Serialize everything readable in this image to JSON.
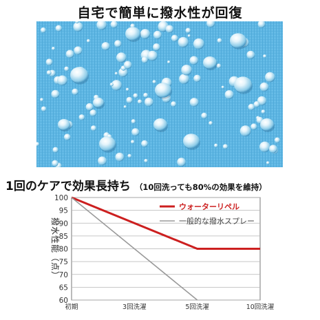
{
  "headline": "自宅で簡単に撥水性が回復",
  "photo": {
    "icon": "water-droplets-on-fabric",
    "fabric_color": "#5fb6e3"
  },
  "subhead": {
    "main": "1回のケアで効果長持ち",
    "note": "（10回洗っても80%の効果を維持）"
  },
  "chart_data": {
    "type": "line",
    "categories": [
      "初期",
      "3回洗濯",
      "5回洗濯",
      "10回洗濯"
    ],
    "ylabel": "撥水性能（点）",
    "ylim": [
      60,
      100
    ],
    "yticks": [
      60,
      65,
      70,
      75,
      80,
      85,
      90,
      95,
      100
    ],
    "grid": true,
    "legend_position": "top-right",
    "series": [
      {
        "name": "ウォーターリペル",
        "color": "#cc1f1f",
        "points": [
          [
            0,
            100
          ],
          [
            2,
            80
          ],
          [
            3,
            80
          ]
        ]
      },
      {
        "name": "一般的な撥水スプレー",
        "color": "#999999",
        "points": [
          [
            0,
            100
          ],
          [
            2,
            60
          ]
        ]
      }
    ]
  }
}
